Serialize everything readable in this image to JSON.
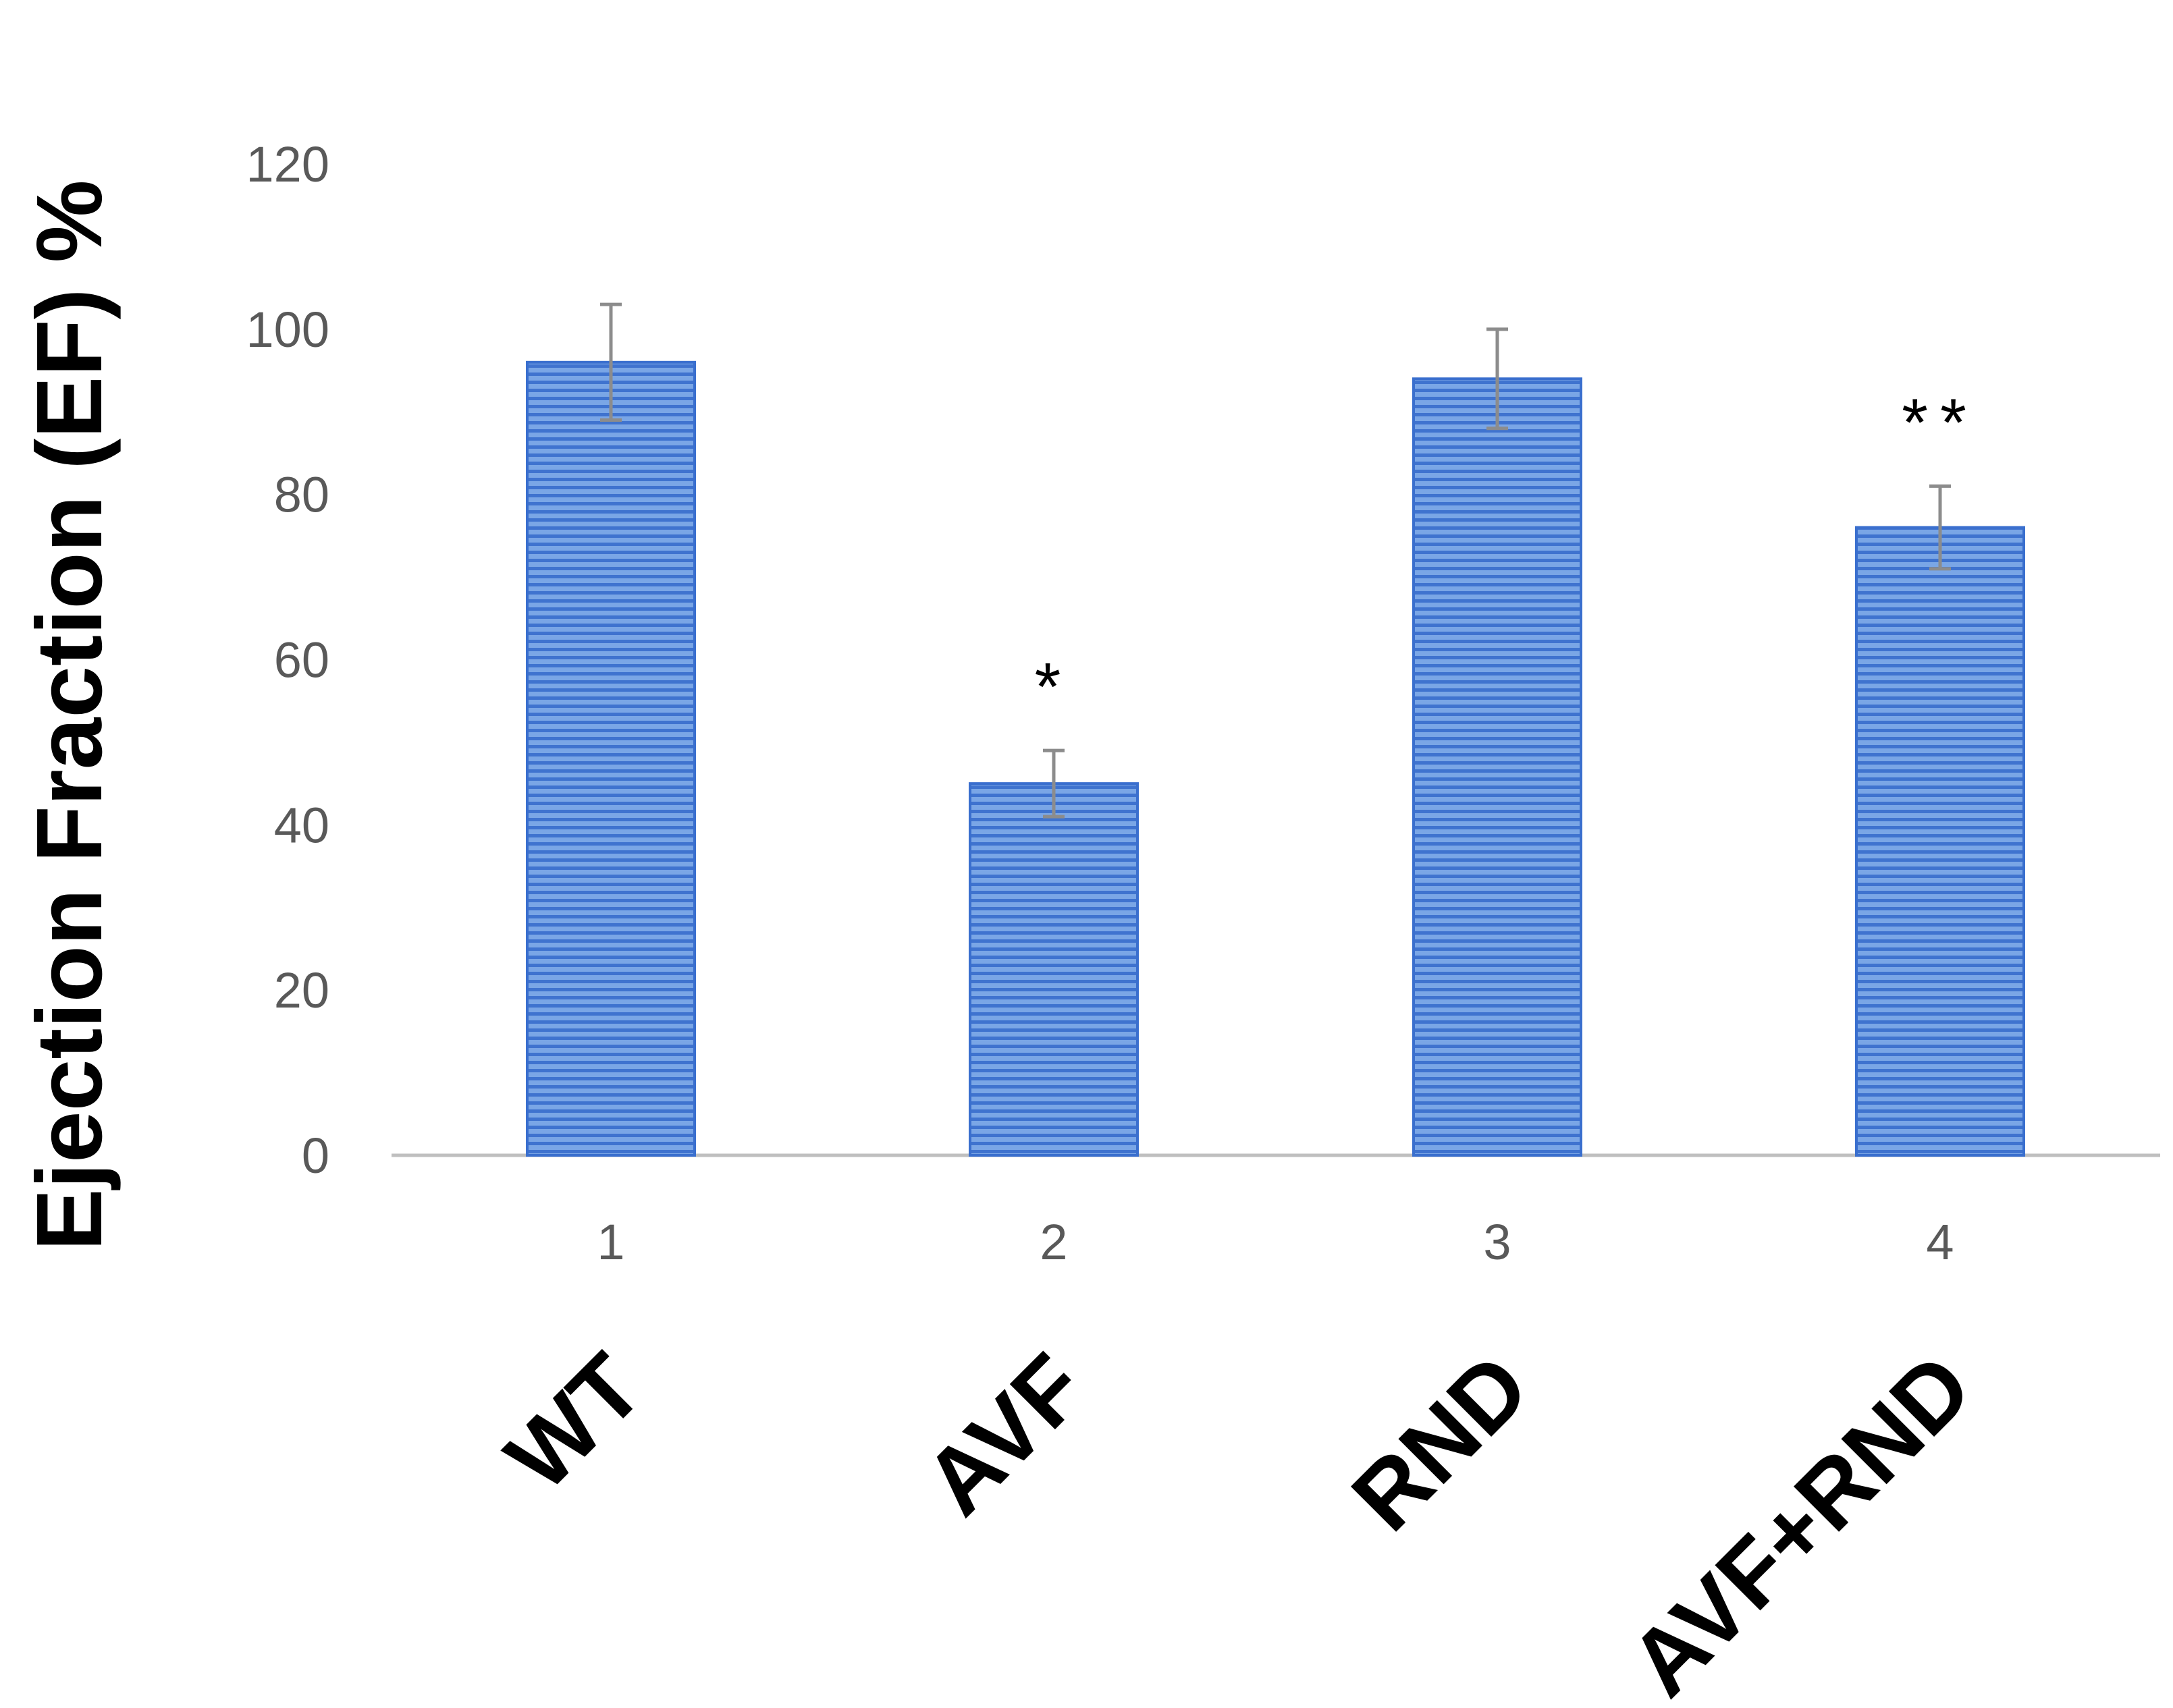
{
  "chart_data": {
    "type": "bar",
    "title": "",
    "xlabel": "",
    "ylabel": "Ejection Fraction (EF) %",
    "categories": [
      "1",
      "2",
      "3",
      "4"
    ],
    "group_labels": [
      "WT",
      "AVF",
      "RND",
      "AVF+RND"
    ],
    "values": [
      96,
      45,
      94,
      76
    ],
    "error": [
      7,
      4,
      6,
      5
    ],
    "significance": [
      "",
      "*",
      "",
      "**"
    ],
    "yticks": [
      "0",
      "20",
      "40",
      "60",
      "80",
      "100",
      "120"
    ],
    "ylim": [
      0,
      120
    ],
    "grid": false,
    "legend": "none",
    "colors": {
      "bar_fill": "#6f9ce0",
      "bar_stripe": "#3c70cc",
      "bar_edge": "#3a6fce",
      "error_bar": "#8c8c8c",
      "axis": "#bfbfbf"
    }
  }
}
